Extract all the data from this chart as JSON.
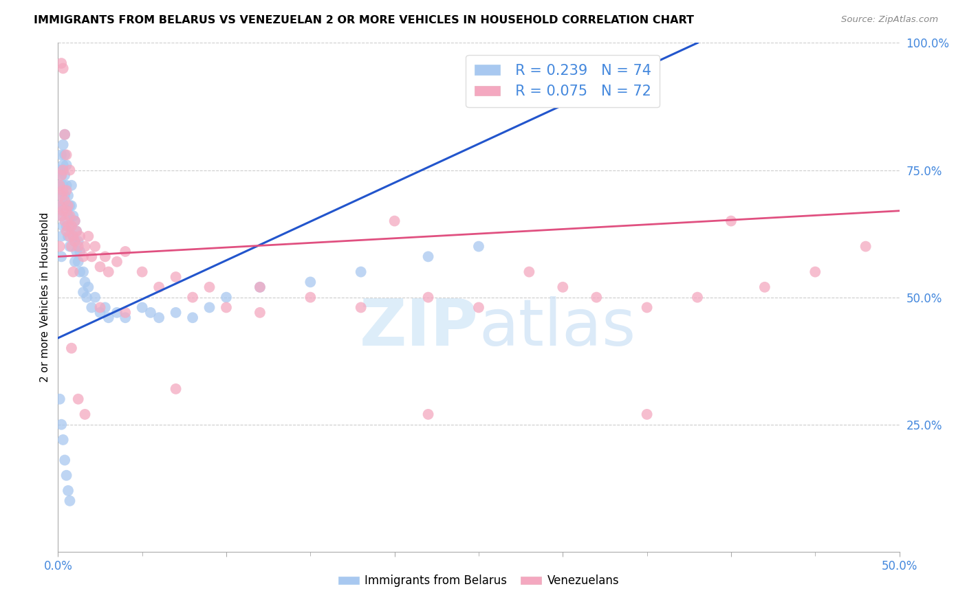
{
  "title": "IMMIGRANTS FROM BELARUS VS VENEZUELAN 2 OR MORE VEHICLES IN HOUSEHOLD CORRELATION CHART",
  "source_text": "Source: ZipAtlas.com",
  "ylabel_label": "2 or more Vehicles in Household",
  "legend_blue_r": "R = 0.239",
  "legend_blue_n": "N = 74",
  "legend_pink_r": "R = 0.075",
  "legend_pink_n": "N = 72",
  "legend_blue_label": "Immigrants from Belarus",
  "legend_pink_label": "Venezuelans",
  "watermark_zip": "ZIP",
  "watermark_atlas": "atlas",
  "color_blue": "#a8c8f0",
  "color_pink": "#f4a8c0",
  "color_blue_line": "#2255cc",
  "color_pink_line": "#e05080",
  "color_blue_text": "#4488dd",
  "color_axis_text": "#4488dd",
  "xlim": [
    0.0,
    0.5
  ],
  "ylim": [
    0.0,
    1.0
  ],
  "figsize": [
    14.06,
    8.92
  ],
  "dpi": 100,
  "blue_x": [
    0.001,
    0.001,
    0.001,
    0.002,
    0.002,
    0.002,
    0.002,
    0.002,
    0.002,
    0.003,
    0.003,
    0.003,
    0.003,
    0.003,
    0.004,
    0.004,
    0.004,
    0.004,
    0.005,
    0.005,
    0.005,
    0.005,
    0.006,
    0.006,
    0.006,
    0.007,
    0.007,
    0.007,
    0.008,
    0.008,
    0.008,
    0.009,
    0.009,
    0.01,
    0.01,
    0.01,
    0.011,
    0.011,
    0.012,
    0.012,
    0.013,
    0.013,
    0.015,
    0.015,
    0.016,
    0.017,
    0.018,
    0.02,
    0.022,
    0.025,
    0.028,
    0.03,
    0.035,
    0.04,
    0.05,
    0.055,
    0.06,
    0.07,
    0.08,
    0.09,
    0.1,
    0.12,
    0.15,
    0.18,
    0.22,
    0.25,
    0.001,
    0.002,
    0.003,
    0.004,
    0.005,
    0.006,
    0.007,
    0.35
  ],
  "blue_y": [
    0.75,
    0.72,
    0.68,
    0.78,
    0.74,
    0.7,
    0.66,
    0.62,
    0.58,
    0.8,
    0.76,
    0.72,
    0.68,
    0.64,
    0.82,
    0.78,
    0.74,
    0.7,
    0.76,
    0.72,
    0.68,
    0.64,
    0.7,
    0.66,
    0.62,
    0.68,
    0.64,
    0.6,
    0.72,
    0.68,
    0.64,
    0.66,
    0.62,
    0.65,
    0.61,
    0.57,
    0.63,
    0.59,
    0.61,
    0.57,
    0.59,
    0.55,
    0.55,
    0.51,
    0.53,
    0.5,
    0.52,
    0.48,
    0.5,
    0.47,
    0.48,
    0.46,
    0.47,
    0.46,
    0.48,
    0.47,
    0.46,
    0.47,
    0.46,
    0.48,
    0.5,
    0.52,
    0.53,
    0.55,
    0.58,
    0.6,
    0.3,
    0.25,
    0.22,
    0.18,
    0.15,
    0.12,
    0.1,
    0.95
  ],
  "pink_x": [
    0.001,
    0.001,
    0.002,
    0.002,
    0.002,
    0.003,
    0.003,
    0.003,
    0.004,
    0.004,
    0.005,
    0.005,
    0.005,
    0.006,
    0.006,
    0.007,
    0.007,
    0.008,
    0.008,
    0.009,
    0.01,
    0.01,
    0.011,
    0.012,
    0.013,
    0.015,
    0.016,
    0.018,
    0.02,
    0.022,
    0.025,
    0.028,
    0.03,
    0.035,
    0.04,
    0.05,
    0.06,
    0.07,
    0.08,
    0.09,
    0.1,
    0.12,
    0.15,
    0.18,
    0.2,
    0.22,
    0.25,
    0.28,
    0.3,
    0.32,
    0.35,
    0.38,
    0.4,
    0.42,
    0.45,
    0.48,
    0.002,
    0.003,
    0.004,
    0.005,
    0.007,
    0.009,
    0.012,
    0.016,
    0.025,
    0.04,
    0.07,
    0.12,
    0.22,
    0.35,
    0.001,
    0.008
  ],
  "pink_y": [
    0.72,
    0.68,
    0.74,
    0.7,
    0.66,
    0.75,
    0.71,
    0.67,
    0.69,
    0.65,
    0.71,
    0.67,
    0.63,
    0.68,
    0.64,
    0.66,
    0.62,
    0.64,
    0.6,
    0.62,
    0.65,
    0.61,
    0.63,
    0.6,
    0.62,
    0.58,
    0.6,
    0.62,
    0.58,
    0.6,
    0.56,
    0.58,
    0.55,
    0.57,
    0.59,
    0.55,
    0.52,
    0.54,
    0.5,
    0.52,
    0.48,
    0.52,
    0.5,
    0.48,
    0.65,
    0.5,
    0.48,
    0.55,
    0.52,
    0.5,
    0.48,
    0.5,
    0.65,
    0.52,
    0.55,
    0.6,
    0.96,
    0.95,
    0.82,
    0.78,
    0.75,
    0.55,
    0.3,
    0.27,
    0.48,
    0.47,
    0.32,
    0.47,
    0.27,
    0.27,
    0.6,
    0.4
  ],
  "trendline_blue_x0": 0.0,
  "trendline_blue_y0": 0.42,
  "trendline_blue_x1": 0.38,
  "trendline_blue_y1": 1.0,
  "trendline_pink_x0": 0.0,
  "trendline_pink_y0": 0.58,
  "trendline_pink_x1": 0.5,
  "trendline_pink_y1": 0.67
}
